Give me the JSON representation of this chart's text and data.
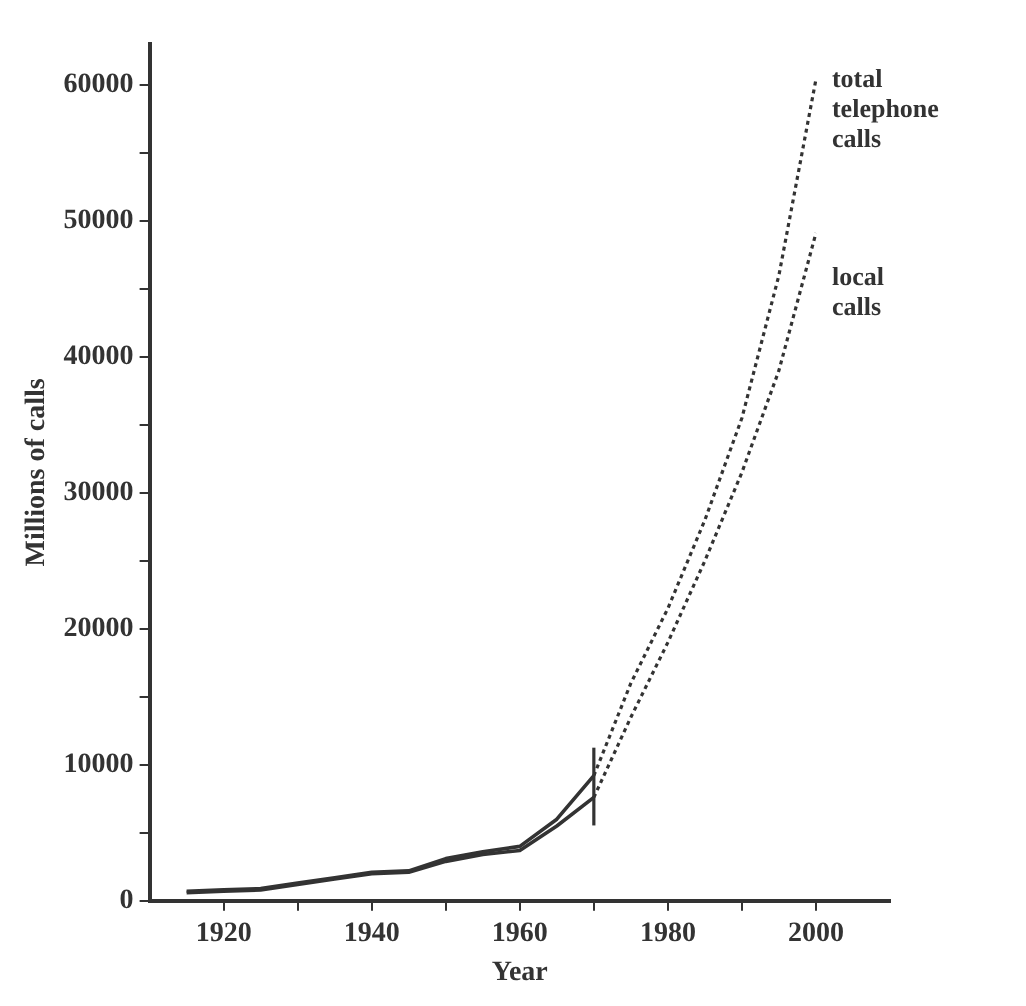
{
  "chart_data": {
    "type": "line",
    "xlabel": "Year",
    "ylabel": "Millions of calls",
    "xlim": [
      1910,
      2010
    ],
    "xticks": [
      1920,
      {
        "value": 1930,
        "label": null
      },
      1940,
      {
        "value": 1950,
        "label": null
      },
      1960,
      {
        "value": 1970,
        "label": null
      },
      1980,
      {
        "value": 1990,
        "label": null
      },
      2000
    ],
    "ylim": [
      0,
      63000
    ],
    "yticks": [
      0,
      {
        "value": 5000,
        "label": null
      },
      10000,
      {
        "value": 15000,
        "label": null
      },
      20000,
      {
        "value": 25000,
        "label": null
      },
      30000,
      {
        "value": 35000,
        "label": null
      },
      40000,
      {
        "value": 45000,
        "label": null
      },
      50000,
      {
        "value": 55000,
        "label": null
      },
      60000
    ],
    "grid": false,
    "legend": false,
    "marker": "none",
    "ref_lines": [
      {
        "axis": "x",
        "value": 1970,
        "color": "#333333"
      }
    ],
    "series": [
      {
        "color": "#333333",
        "line_style": "solid",
        "x": [
          1915,
          1920,
          1925,
          1930,
          1935,
          1940,
          1945,
          1950,
          1955,
          1960,
          1965,
          1970
        ],
        "values": [
          700,
          800,
          900,
          1300,
          1700,
          2100,
          2200,
          3100,
          3600,
          4000,
          6000,
          9200
        ]
      },
      {
        "color": "#333333",
        "line_style": "solid",
        "x": [
          1915,
          1920,
          1925,
          1930,
          1935,
          1940,
          1945,
          1950,
          1955,
          1960,
          1965,
          1970
        ],
        "values": [
          600,
          700,
          800,
          1200,
          1600,
          2000,
          2100,
          2900,
          3400,
          3700,
          5500,
          7600
        ]
      },
      {
        "name": "total telephone calls",
        "color": "#333333",
        "line_style": "dotted",
        "x": [
          1970,
          1975,
          1980,
          1985,
          1990,
          1995,
          2000
        ],
        "values": [
          9200,
          16000,
          21500,
          28000,
          35500,
          46000,
          60400
        ]
      },
      {
        "name": "local calls",
        "color": "#333333",
        "line_style": "dotted",
        "x": [
          1970,
          1975,
          1980,
          1985,
          1990,
          1995,
          2000
        ],
        "values": [
          7600,
          13500,
          19000,
          25000,
          31500,
          39000,
          49100
        ]
      }
    ]
  }
}
